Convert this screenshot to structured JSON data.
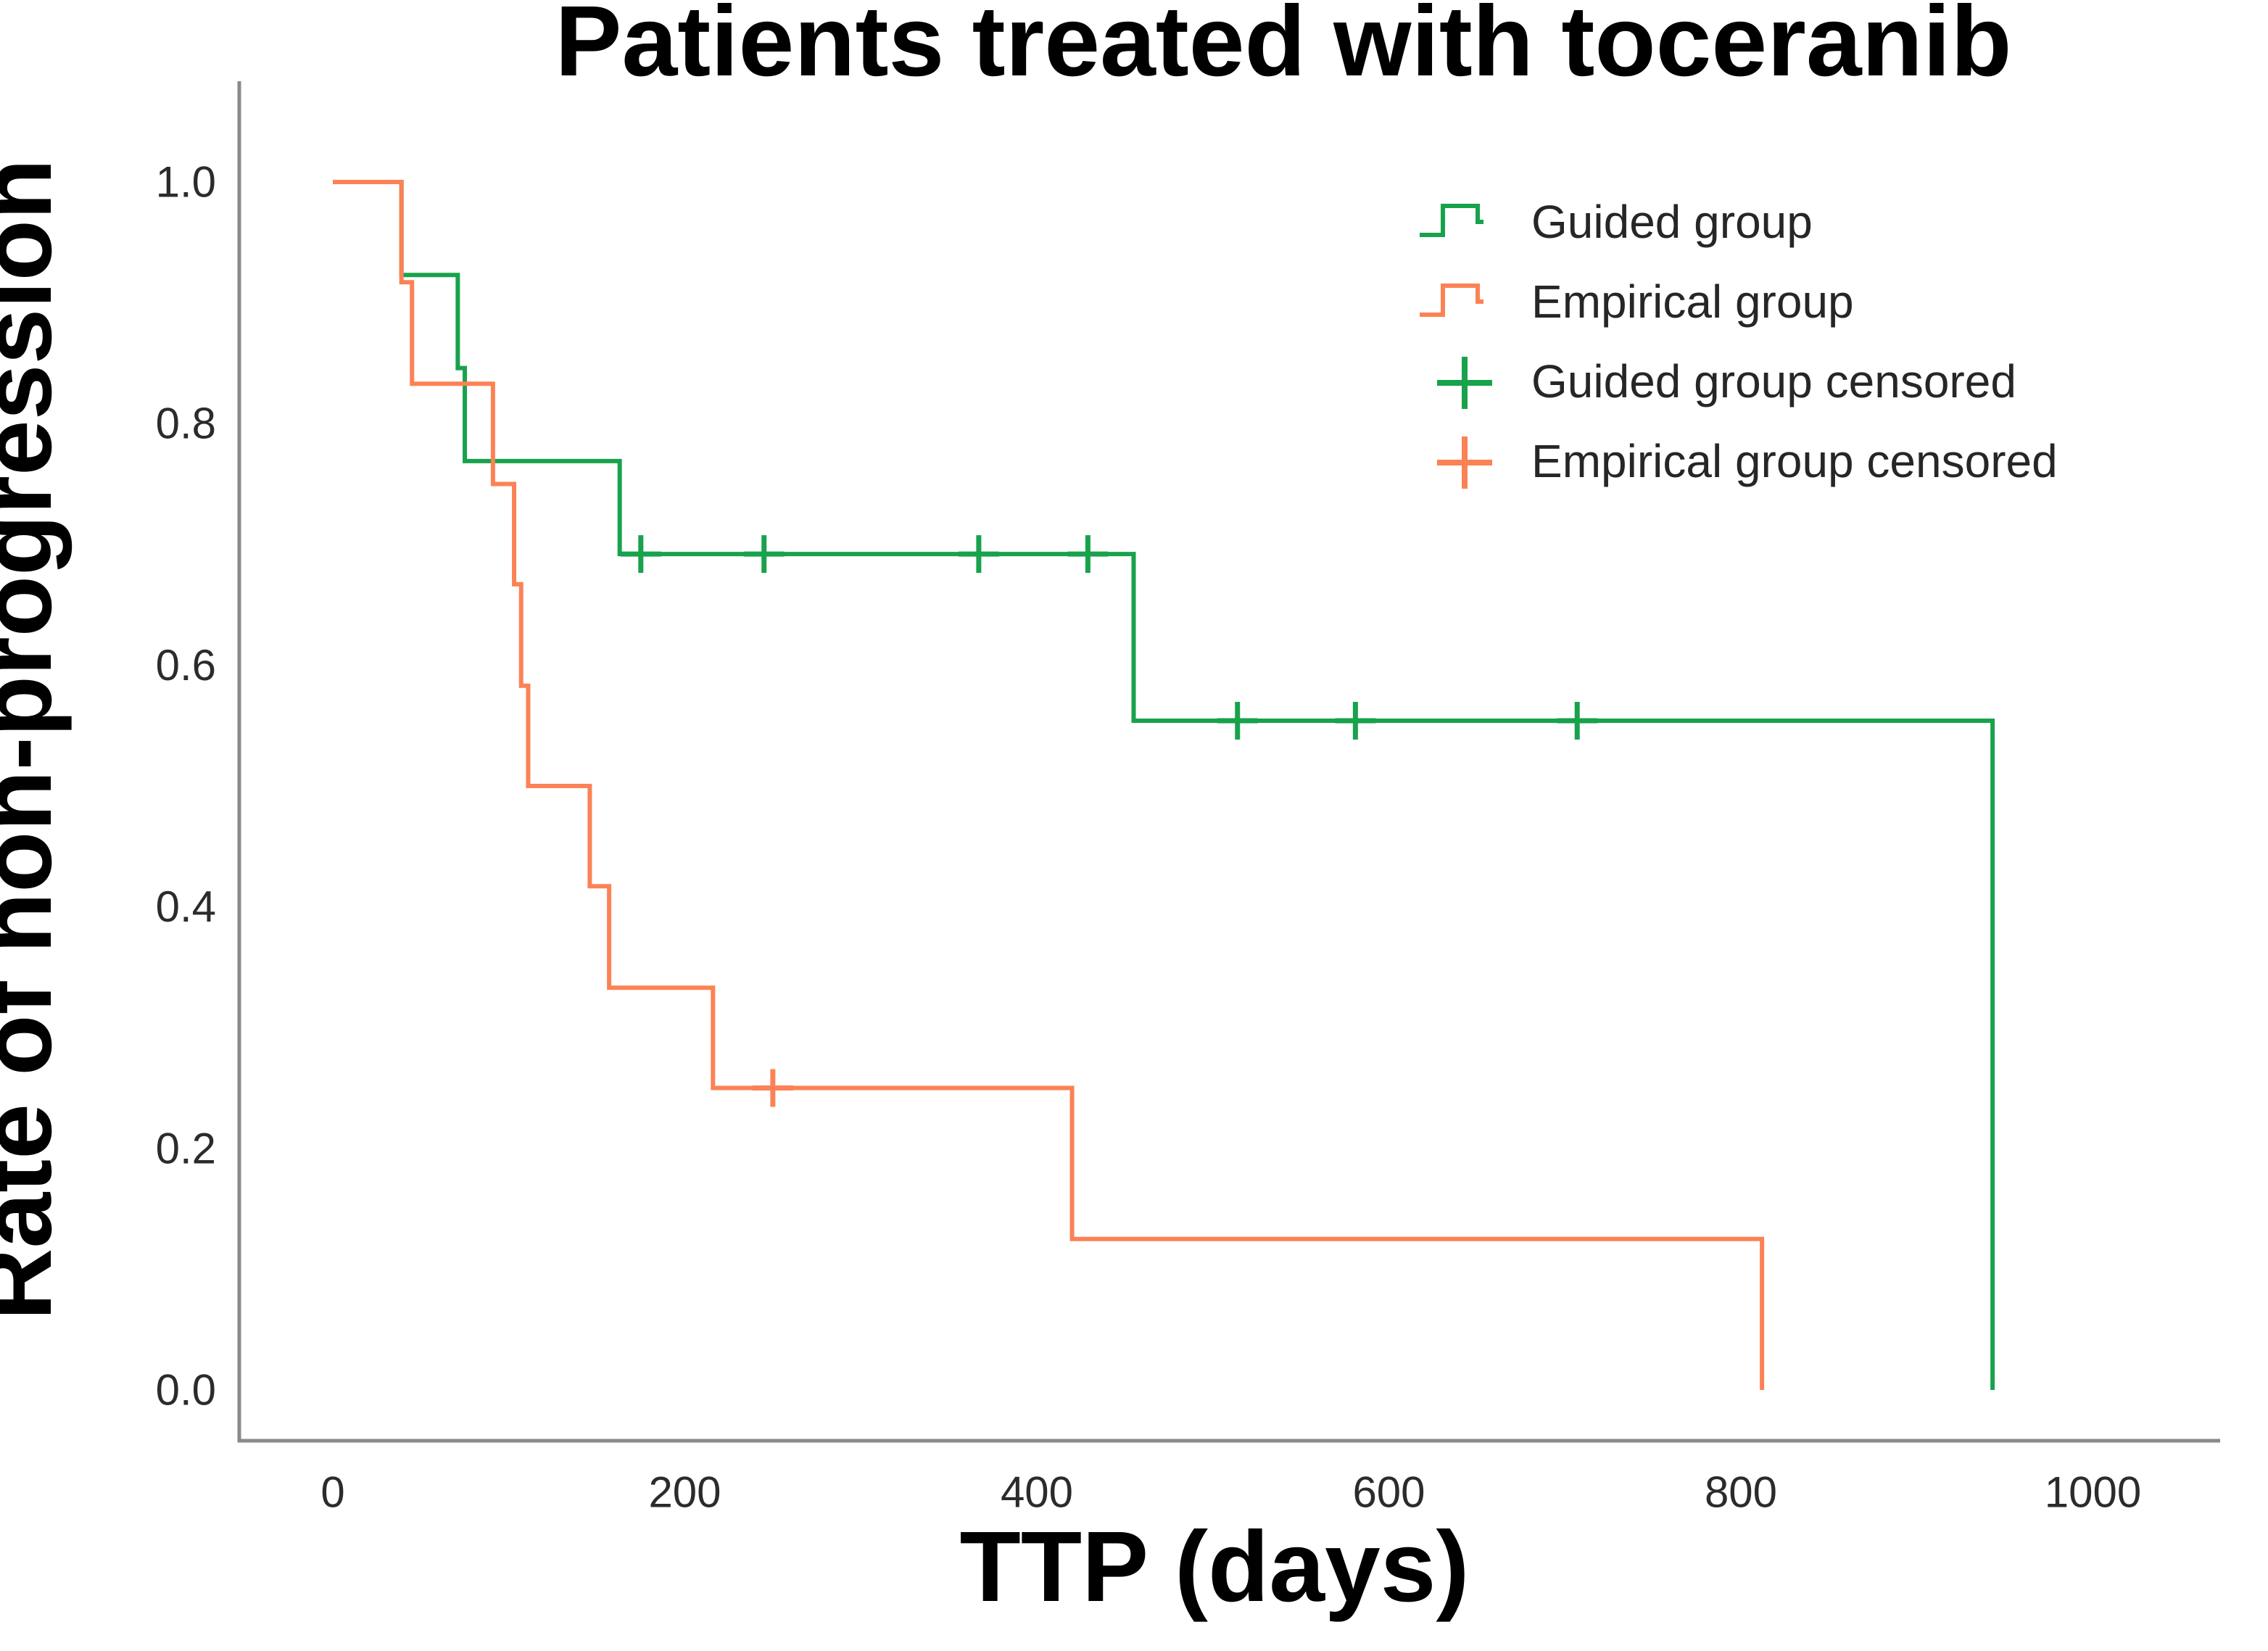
{
  "figure": {
    "title": "Patients treated with toceranib",
    "x_axis_label": "TTP (days)",
    "y_axis_label": "Rate of non-progression"
  },
  "chart_data": {
    "type": "line",
    "subtype": "kaplan_meier_step",
    "title": "Patients treated with toceranib",
    "xlabel": "TTP (days)",
    "ylabel": "Rate of non-progression",
    "xlim": [
      -55,
      1075
    ],
    "ylim": [
      0.0,
      1.0
    ],
    "x_ticks": [
      0,
      200,
      400,
      600,
      800,
      1000
    ],
    "y_ticks": [
      0.0,
      0.2,
      0.4,
      0.6,
      0.8,
      1.0
    ],
    "grid": false,
    "legend_position": "top-right",
    "legend": [
      "Guided group",
      "Empirical group",
      "Guided group censored",
      "Empirical group censored"
    ],
    "series": [
      {
        "name": "Guided group",
        "censored_name": "Guided group censored",
        "color": "#18a24c",
        "steps": [
          [
            0,
            1.0
          ],
          [
            39,
            0.923
          ],
          [
            71,
            0.846
          ],
          [
            75,
            0.769
          ],
          [
            163,
            0.692
          ],
          [
            455,
            0.554
          ],
          [
            943,
            0.0
          ]
        ],
        "censored": [
          [
            175,
            0.692
          ],
          [
            245,
            0.692
          ],
          [
            367,
            0.692
          ],
          [
            429,
            0.692
          ],
          [
            514,
            0.554
          ],
          [
            581,
            0.554
          ],
          [
            707,
            0.554
          ]
        ]
      },
      {
        "name": "Empirical group",
        "censored_name": "Empirical group censored",
        "color": "#fb8255",
        "steps": [
          [
            0,
            1.0
          ],
          [
            39,
            0.917
          ],
          [
            45,
            0.833
          ],
          [
            91,
            0.75
          ],
          [
            103,
            0.667
          ],
          [
            107,
            0.583
          ],
          [
            111,
            0.5
          ],
          [
            146,
            0.417
          ],
          [
            157,
            0.333
          ],
          [
            216,
            0.25
          ],
          [
            420,
            0.125
          ],
          [
            812,
            0.0
          ]
        ],
        "censored": [
          [
            250,
            0.25
          ]
        ]
      }
    ]
  },
  "colors": {
    "axis_line": "#8a8a8a",
    "title_text": "#000000",
    "tick_text": "#2b2b2b",
    "legend_text": "#262626",
    "background": "#ffffff",
    "guided": "#18a24c",
    "empirical": "#fb8255"
  }
}
